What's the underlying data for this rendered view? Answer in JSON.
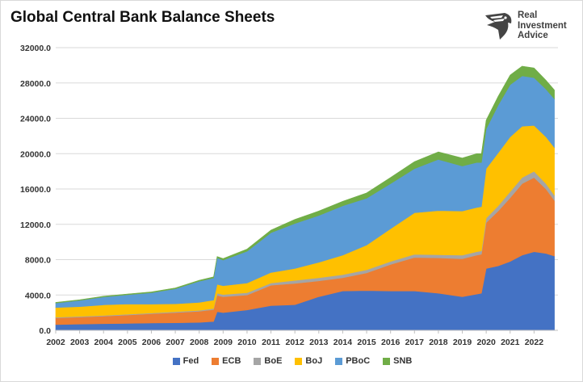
{
  "title": "Global Central Bank Balance Sheets",
  "logo": {
    "lines": [
      "Real",
      "Investment",
      "Advice"
    ],
    "icon": "eagle-head-logo-icon"
  },
  "chart_data": {
    "type": "area",
    "stacked": true,
    "xlim": [
      2002,
      2023
    ],
    "ylim": [
      0,
      32000
    ],
    "y_ticks": [
      "0.0",
      "4000.0",
      "8000.0",
      "12000.0",
      "16000.0",
      "20000.0",
      "24000.0",
      "28000.0",
      "32000.0"
    ],
    "x_ticks": [
      "2002",
      "2003",
      "2004",
      "2005",
      "2006",
      "2007",
      "2008",
      "2009",
      "2010",
      "2011",
      "2012",
      "2013",
      "2014",
      "2015",
      "2016",
      "2017",
      "2018",
      "2019",
      "2020",
      "2021",
      "2022"
    ],
    "grid": true,
    "legend_position": "bottom",
    "x": [
      2002.0,
      2003.0,
      2004.0,
      2005.0,
      2006.0,
      2007.0,
      2008.0,
      2008.6,
      2008.75,
      2009.0,
      2010.0,
      2011.0,
      2012.0,
      2013.0,
      2014.0,
      2015.0,
      2016.0,
      2017.0,
      2018.0,
      2019.0,
      2019.6,
      2019.8,
      2020.0,
      2020.5,
      2021.0,
      2021.5,
      2022.0,
      2022.5,
      2022.85
    ],
    "series": [
      {
        "name": "Fed",
        "color": "#4472C4",
        "values": [
          650,
          700,
          750,
          780,
          820,
          850,
          900,
          1000,
          2100,
          2000,
          2300,
          2800,
          2900,
          3800,
          4450,
          4500,
          4450,
          4450,
          4200,
          3800,
          4100,
          4200,
          7000,
          7300,
          7800,
          8500,
          8900,
          8700,
          8400
        ]
      },
      {
        "name": "ECB",
        "color": "#ED7D31",
        "values": [
          750,
          800,
          850,
          950,
          1050,
          1150,
          1250,
          1350,
          1850,
          1800,
          1700,
          2300,
          2400,
          1800,
          1500,
          2000,
          3000,
          3800,
          4000,
          4300,
          4400,
          4400,
          5200,
          6200,
          7200,
          8100,
          8400,
          7300,
          6300
        ]
      },
      {
        "name": "BoE",
        "color": "#A5A5A5",
        "values": [
          80,
          80,
          80,
          90,
          90,
          100,
          110,
          120,
          250,
          250,
          250,
          250,
          350,
          350,
          350,
          350,
          350,
          350,
          350,
          400,
          400,
          400,
          500,
          600,
          700,
          700,
          700,
          600,
          600
        ]
      },
      {
        "name": "BoJ",
        "color": "#FFC000",
        "values": [
          1100,
          1100,
          1200,
          1150,
          1000,
          900,
          900,
          950,
          1000,
          1000,
          1100,
          1200,
          1350,
          1750,
          2200,
          2800,
          3700,
          4700,
          5000,
          5000,
          5000,
          5000,
          5600,
          6000,
          6200,
          5800,
          5200,
          5300,
          5400
        ]
      },
      {
        "name": "PBoC",
        "color": "#5B9BD5",
        "values": [
          500,
          700,
          900,
          1050,
          1300,
          1700,
          2400,
          2500,
          3000,
          2900,
          3600,
          4500,
          5100,
          5300,
          5600,
          5300,
          5100,
          5000,
          5800,
          5100,
          5100,
          5000,
          4500,
          5400,
          5900,
          5700,
          5400,
          5400,
          5500
        ]
      },
      {
        "name": "SNB",
        "color": "#70AD47",
        "values": [
          80,
          80,
          80,
          90,
          90,
          100,
          110,
          130,
          160,
          180,
          250,
          300,
          450,
          500,
          500,
          600,
          700,
          800,
          850,
          900,
          1000,
          1000,
          1000,
          1000,
          1100,
          1100,
          1100,
          1000,
          1000
        ]
      }
    ]
  }
}
